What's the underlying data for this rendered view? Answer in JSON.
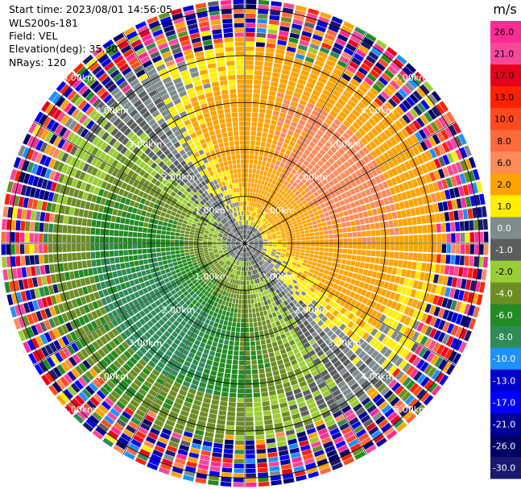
{
  "header": {
    "start_time": "Start time: 2023/08/01 14:56:05",
    "instrument": "WLS200s-181",
    "field": "Field: VEL",
    "elevation": "Elevation(deg): 35.30",
    "nrays": "NRays: 120"
  },
  "chart_data": {
    "type": "heatmap",
    "subtype": "polar-ppi",
    "title": "",
    "rays": 120,
    "range_rings_km": [
      1.0,
      2.0,
      3.0,
      4.0,
      5.0
    ],
    "range_ring_labels": [
      "1.00km",
      "2.00km",
      "3.00km",
      "4.00km",
      "5.00km"
    ],
    "max_range_km": 5.2,
    "radial_lines_deg": [
      0,
      30,
      60,
      90,
      120,
      150,
      180,
      210,
      240,
      270,
      300,
      330
    ],
    "colorbar": {
      "unit": "m/s",
      "ticks": [
        "26.0",
        "21.0",
        "17.0",
        "13.0",
        "10.0",
        "8.0",
        "6.0",
        "2.0",
        "1.0",
        "0.0",
        "-1.0",
        "-2.0",
        "-4.0",
        "-6.0",
        "-8.0",
        "-10.0",
        "-13.0",
        "-17.0",
        "-21.0",
        "-26.0",
        "-30.0"
      ],
      "bins": [
        {
          "lo": 26,
          "hi": 30,
          "color": "#ff2a93"
        },
        {
          "lo": 21,
          "hi": 26,
          "color": "#f7489a"
        },
        {
          "lo": 17,
          "hi": 21,
          "color": "#e8001c"
        },
        {
          "lo": 13,
          "hi": 17,
          "color": "#ff2200"
        },
        {
          "lo": 10,
          "hi": 13,
          "color": "#ff4a1c"
        },
        {
          "lo": 8,
          "hi": 10,
          "color": "#ff6a3c"
        },
        {
          "lo": 6,
          "hi": 8,
          "color": "#ff8a5a"
        },
        {
          "lo": 2,
          "hi": 6,
          "color": "#ffa300"
        },
        {
          "lo": 1,
          "hi": 2,
          "color": "#ffee00"
        },
        {
          "lo": 0,
          "hi": 1,
          "color": "#7f8c8d"
        },
        {
          "lo": -1,
          "hi": 0,
          "color": "#5b5e5e"
        },
        {
          "lo": -2,
          "hi": -1,
          "color": "#9acd32"
        },
        {
          "lo": -4,
          "hi": -2,
          "color": "#6b8e23"
        },
        {
          "lo": -6,
          "hi": -4,
          "color": "#228b22"
        },
        {
          "lo": -8,
          "hi": -6,
          "color": "#2e8b57"
        },
        {
          "lo": -10,
          "hi": -8,
          "color": "#1e90ff"
        },
        {
          "lo": -13,
          "hi": -10,
          "color": "#0000cd"
        },
        {
          "lo": -17,
          "hi": -13,
          "color": "#0000ff"
        },
        {
          "lo": -21,
          "hi": -17,
          "color": "#000099"
        },
        {
          "lo": -26,
          "hi": -21,
          "color": "#000066"
        },
        {
          "lo": -30,
          "hi": -26,
          "color": "#191970"
        }
      ]
    },
    "field_description": "Doppler radial velocity; near-range band shows toward(+) sector NE and away(-) sector SW, outer ranges noisy",
    "velocity_pattern": {
      "peak_toward_ms": 7.0,
      "peak_away_ms": -7.0,
      "toward_azimuth_deg": 50,
      "clean_range_km": 3.9,
      "noise_start_km": 4.0
    }
  }
}
